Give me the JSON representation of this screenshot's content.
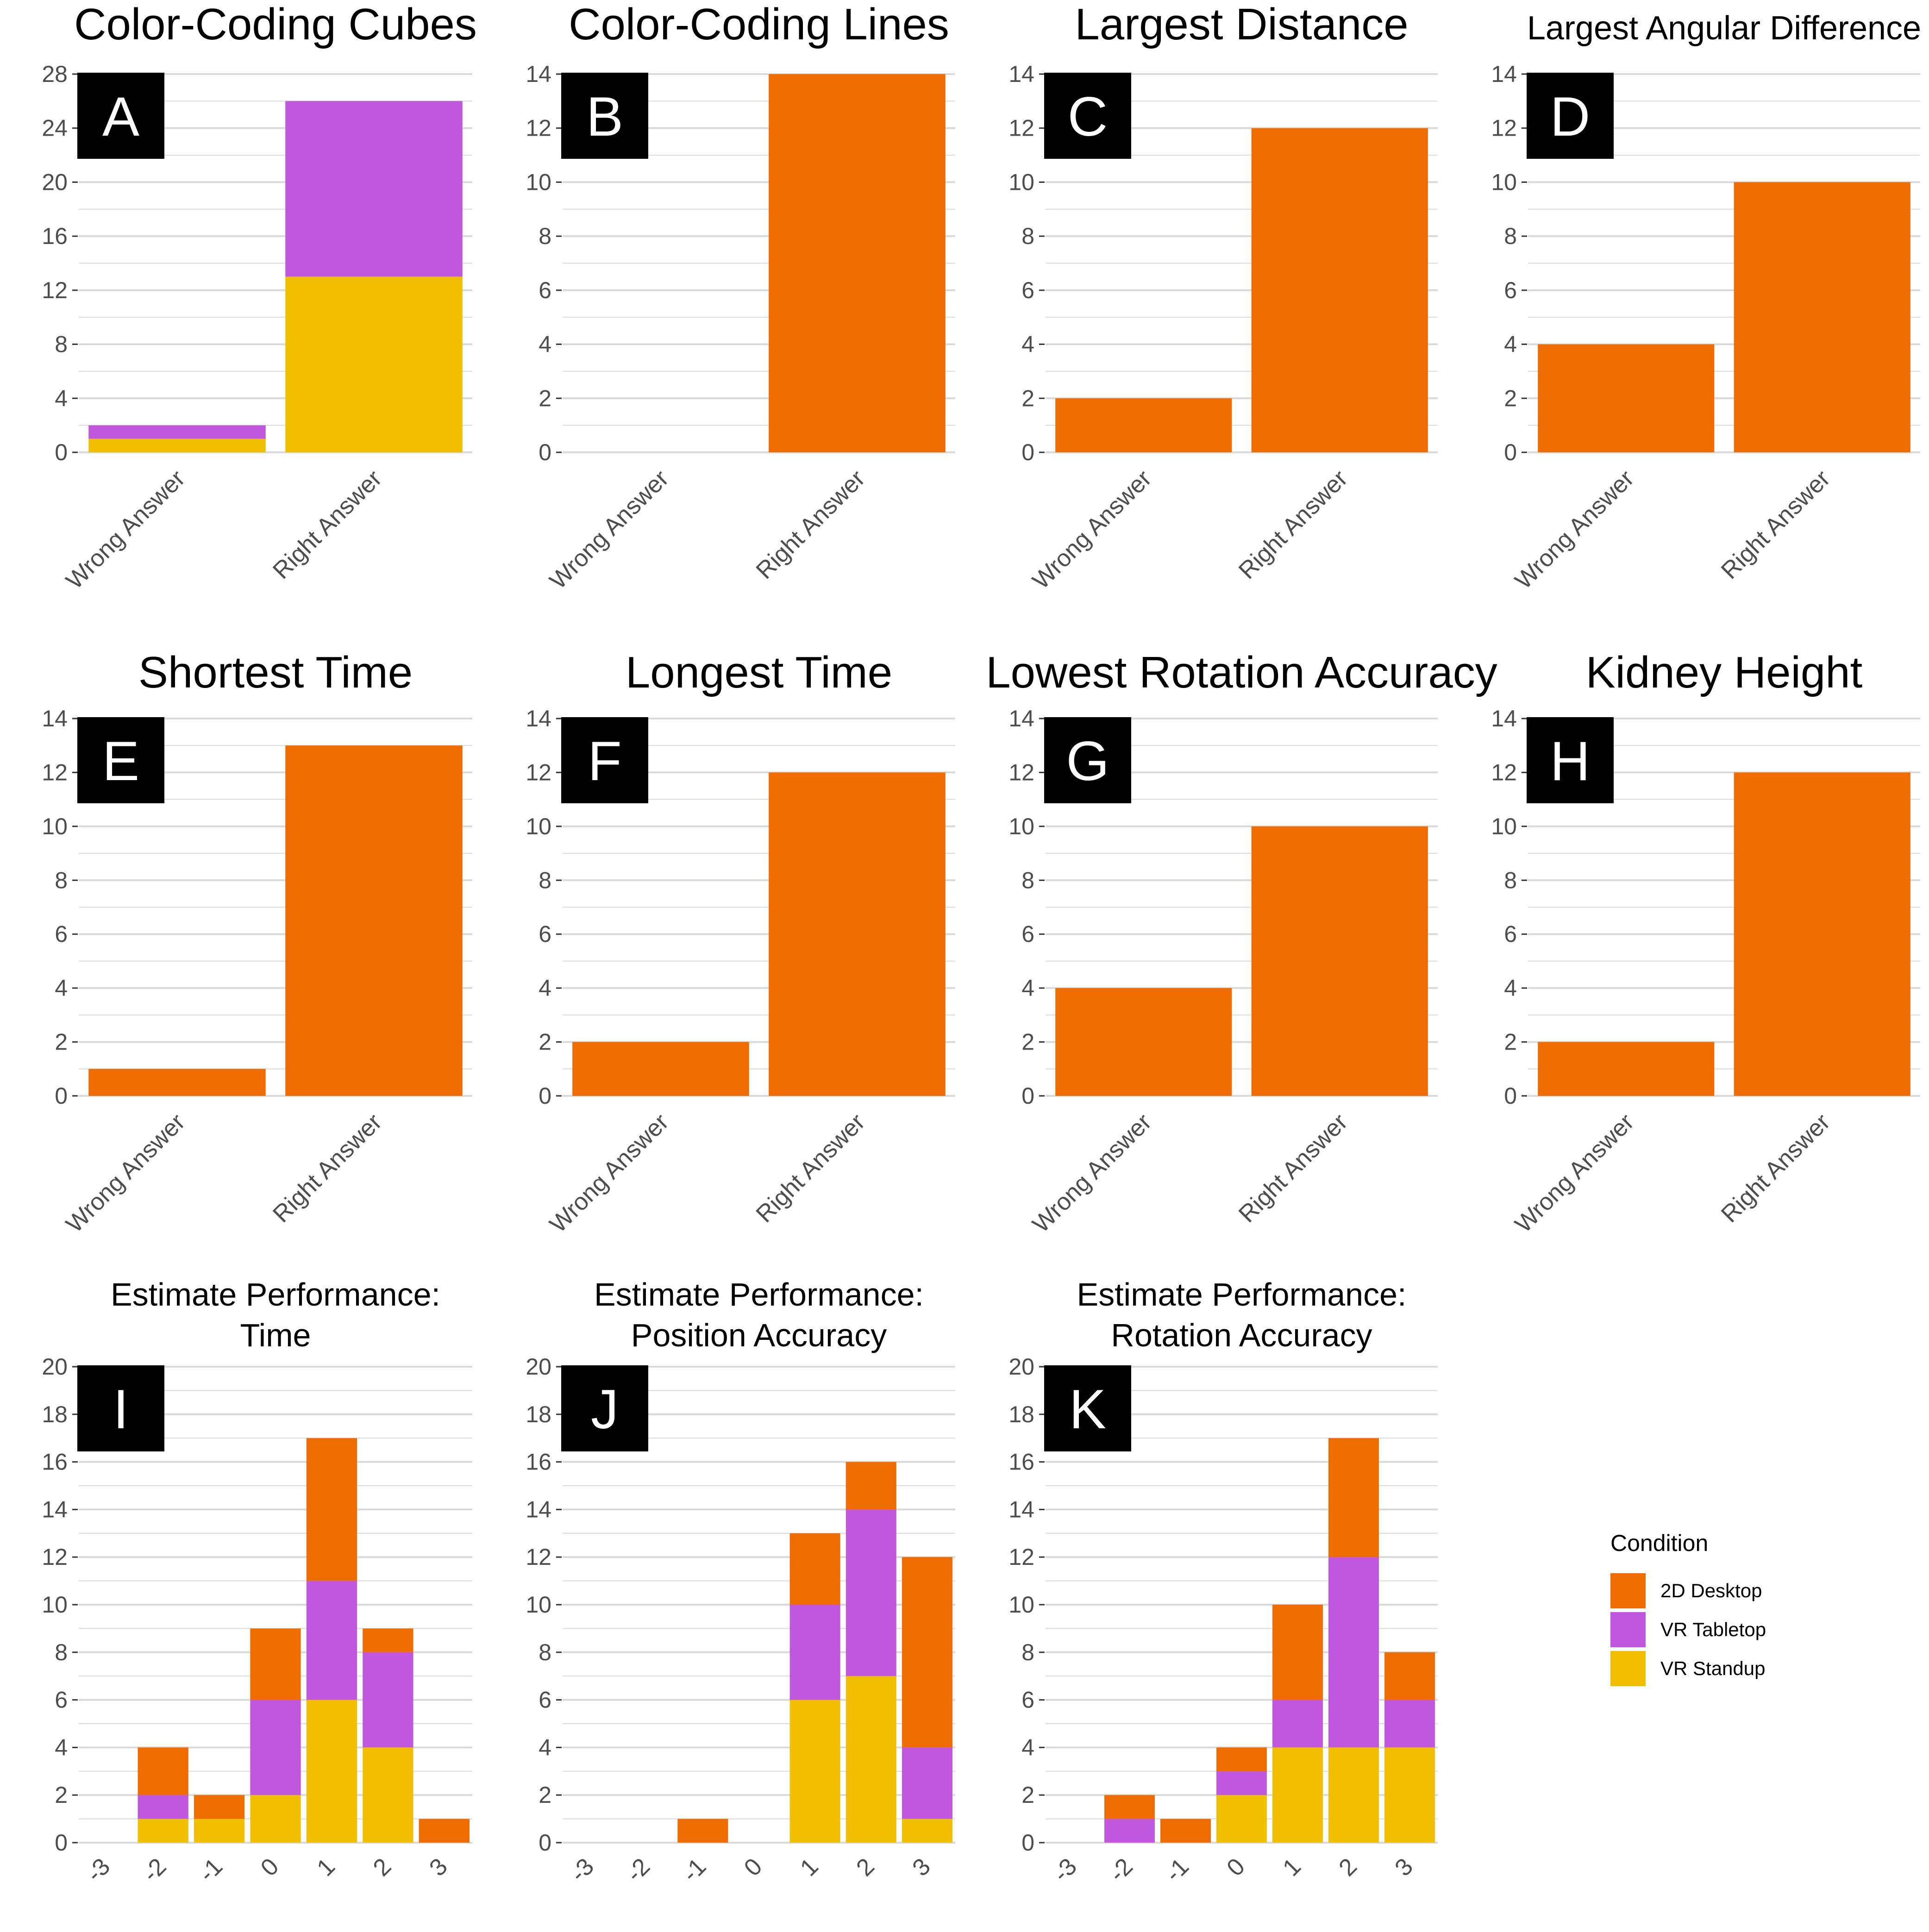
{
  "colors": {
    "2D Desktop": "#ee6c00",
    "VR Tabletop": "#c057dc",
    "VR Standup": "#f0c000",
    "grid": "#d9d9d9",
    "tick": "#4d4d4d"
  },
  "legend": {
    "title": "Condition",
    "placement": "right",
    "items": [
      "2D Desktop",
      "VR Tabletop",
      "VR Standup"
    ]
  },
  "chart_data": [
    {
      "letter": "A",
      "type": "bar",
      "stacked": true,
      "title": [
        "Color-Coding Cubes"
      ],
      "categories": [
        "Wrong Answer",
        "Right Answer"
      ],
      "ylim": [
        0,
        28
      ],
      "yticks": [
        0,
        4,
        8,
        12,
        16,
        20,
        24,
        28
      ],
      "series": [
        {
          "name": "VR Standup",
          "values": [
            1,
            13
          ]
        },
        {
          "name": "VR Tabletop",
          "values": [
            1,
            13
          ]
        }
      ]
    },
    {
      "letter": "B",
      "type": "bar",
      "stacked": true,
      "title": [
        "Color-Coding Lines"
      ],
      "categories": [
        "Wrong Answer",
        "Right Answer"
      ],
      "ylim": [
        0,
        14
      ],
      "yticks": [
        0,
        2,
        4,
        6,
        8,
        10,
        12,
        14
      ],
      "series": [
        {
          "name": "2D Desktop",
          "values": [
            0,
            14
          ]
        }
      ]
    },
    {
      "letter": "C",
      "type": "bar",
      "stacked": true,
      "title": [
        "Largest Distance"
      ],
      "categories": [
        "Wrong Answer",
        "Right Answer"
      ],
      "ylim": [
        0,
        14
      ],
      "yticks": [
        0,
        2,
        4,
        6,
        8,
        10,
        12,
        14
      ],
      "series": [
        {
          "name": "2D Desktop",
          "values": [
            2,
            12
          ]
        }
      ]
    },
    {
      "letter": "D",
      "type": "bar",
      "stacked": true,
      "title": [
        "Largest Angular Difference"
      ],
      "categories": [
        "Wrong Answer",
        "Right Answer"
      ],
      "ylim": [
        0,
        14
      ],
      "yticks": [
        0,
        2,
        4,
        6,
        8,
        10,
        12,
        14
      ],
      "series": [
        {
          "name": "2D Desktop",
          "values": [
            4,
            10
          ]
        }
      ]
    },
    {
      "letter": "E",
      "type": "bar",
      "stacked": true,
      "title": [
        "Shortest Time"
      ],
      "categories": [
        "Wrong Answer",
        "Right Answer"
      ],
      "ylim": [
        0,
        14
      ],
      "yticks": [
        0,
        2,
        4,
        6,
        8,
        10,
        12,
        14
      ],
      "series": [
        {
          "name": "2D Desktop",
          "values": [
            1,
            13
          ]
        }
      ]
    },
    {
      "letter": "F",
      "type": "bar",
      "stacked": true,
      "title": [
        "Longest Time"
      ],
      "categories": [
        "Wrong Answer",
        "Right Answer"
      ],
      "ylim": [
        0,
        14
      ],
      "yticks": [
        0,
        2,
        4,
        6,
        8,
        10,
        12,
        14
      ],
      "series": [
        {
          "name": "2D Desktop",
          "values": [
            2,
            12
          ]
        }
      ]
    },
    {
      "letter": "G",
      "type": "bar",
      "stacked": true,
      "title": [
        "Lowest Rotation Accuracy"
      ],
      "categories": [
        "Wrong Answer",
        "Right Answer"
      ],
      "ylim": [
        0,
        14
      ],
      "yticks": [
        0,
        2,
        4,
        6,
        8,
        10,
        12,
        14
      ],
      "series": [
        {
          "name": "2D Desktop",
          "values": [
            4,
            10
          ]
        }
      ]
    },
    {
      "letter": "H",
      "type": "bar",
      "stacked": true,
      "title": [
        "Kidney Height"
      ],
      "categories": [
        "Wrong Answer",
        "Right Answer"
      ],
      "ylim": [
        0,
        14
      ],
      "yticks": [
        0,
        2,
        4,
        6,
        8,
        10,
        12,
        14
      ],
      "series": [
        {
          "name": "2D Desktop",
          "values": [
            2,
            12
          ]
        }
      ]
    },
    {
      "letter": "I",
      "type": "bar",
      "stacked": true,
      "title": [
        "Estimate Performance:",
        "Time"
      ],
      "categories": [
        "-3",
        "-2",
        "-1",
        "0",
        "1",
        "2",
        "3"
      ],
      "ylim": [
        0,
        20
      ],
      "yticks": [
        0,
        2,
        4,
        6,
        8,
        10,
        12,
        14,
        16,
        18,
        20
      ],
      "series": [
        {
          "name": "VR Standup",
          "values": [
            0,
            1,
            1,
            2,
            6,
            4,
            0
          ]
        },
        {
          "name": "VR Tabletop",
          "values": [
            0,
            1,
            0,
            4,
            5,
            4,
            0
          ]
        },
        {
          "name": "2D Desktop",
          "values": [
            0,
            2,
            1,
            3,
            6,
            1,
            1
          ]
        }
      ]
    },
    {
      "letter": "J",
      "type": "bar",
      "stacked": true,
      "title": [
        "Estimate Performance:",
        "Position Accuracy"
      ],
      "categories": [
        "-3",
        "-2",
        "-1",
        "0",
        "1",
        "2",
        "3"
      ],
      "ylim": [
        0,
        20
      ],
      "yticks": [
        0,
        2,
        4,
        6,
        8,
        10,
        12,
        14,
        16,
        18,
        20
      ],
      "series": [
        {
          "name": "VR Standup",
          "values": [
            0,
            0,
            0,
            0,
            6,
            7,
            1
          ]
        },
        {
          "name": "VR Tabletop",
          "values": [
            0,
            0,
            0,
            0,
            4,
            7,
            3
          ]
        },
        {
          "name": "2D Desktop",
          "values": [
            0,
            0,
            1,
            0,
            3,
            2,
            8
          ]
        }
      ]
    },
    {
      "letter": "K",
      "type": "bar",
      "stacked": true,
      "title": [
        "Estimate Performance:",
        "Rotation Accuracy"
      ],
      "categories": [
        "-3",
        "-2",
        "-1",
        "0",
        "1",
        "2",
        "3"
      ],
      "ylim": [
        0,
        20
      ],
      "yticks": [
        0,
        2,
        4,
        6,
        8,
        10,
        12,
        14,
        16,
        18,
        20
      ],
      "series": [
        {
          "name": "VR Standup",
          "values": [
            0,
            0,
            0,
            2,
            4,
            4,
            4
          ]
        },
        {
          "name": "VR Tabletop",
          "values": [
            0,
            1,
            0,
            1,
            2,
            8,
            2
          ]
        },
        {
          "name": "2D Desktop",
          "values": [
            0,
            1,
            1,
            1,
            4,
            5,
            2
          ]
        }
      ]
    }
  ]
}
